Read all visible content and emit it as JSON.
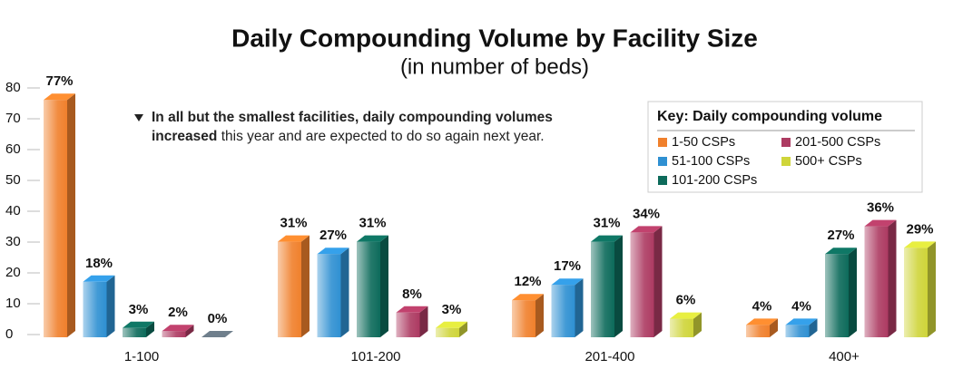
{
  "chart_data": {
    "type": "bar",
    "title": "Daily Compounding Volume by Facility Size",
    "subtitle": "(in number of beds)",
    "categories": [
      "1-100",
      "101-200",
      "201-400",
      "400+"
    ],
    "series": [
      {
        "name": "1-50 CSPs",
        "color": "#f0802c",
        "values": [
          77,
          31,
          12,
          4
        ],
        "value_labels": [
          "77%",
          "31%",
          "12%",
          "4%"
        ]
      },
      {
        "name": "51-100 CSPs",
        "color": "#2f90d2",
        "values": [
          18,
          27,
          17,
          4
        ],
        "value_labels": [
          "18%",
          "27%",
          "17%",
          "4%"
        ]
      },
      {
        "name": "101-200 CSPs",
        "color": "#0d6b5b",
        "values": [
          3,
          31,
          31,
          27
        ],
        "value_labels": [
          "3%",
          "31%",
          "31%",
          "27%"
        ]
      },
      {
        "name": "201-500 CSPs",
        "color": "#ad3b62",
        "values": [
          2,
          8,
          34,
          36
        ],
        "value_labels": [
          "2%",
          "8%",
          "34%",
          "36%"
        ]
      },
      {
        "name": "500+ CSPs",
        "color": "#cfd53a",
        "values": [
          0,
          3,
          6,
          29
        ],
        "value_labels": [
          "0%",
          "3%",
          "6%",
          "29%"
        ]
      }
    ],
    "ylim": [
      0,
      80
    ],
    "yticks": [
      0,
      10,
      20,
      30,
      40,
      50,
      60,
      70,
      80
    ],
    "grid": false,
    "legend_title": "Key: Daily compounding volume",
    "annotation_bold": "In all but the smallest facilities, daily compounding volumes increased",
    "annotation": "this year and are expected to do so again next year."
  }
}
